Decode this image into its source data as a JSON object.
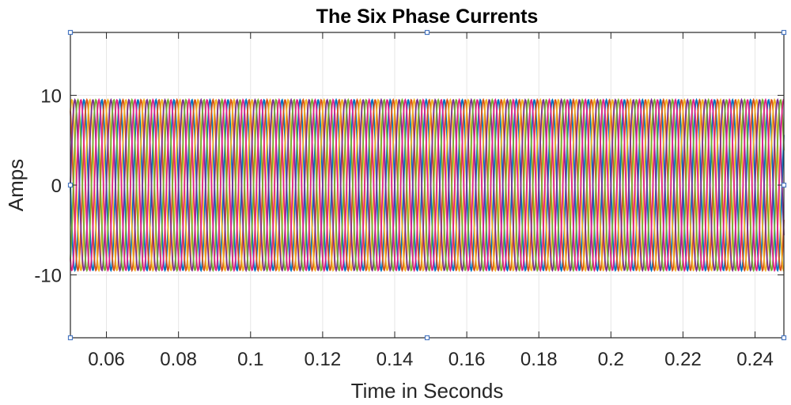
{
  "chart_data": {
    "type": "line",
    "title": "The Six Phase Currents",
    "xlabel": "Time in Seconds",
    "ylabel": "Amps",
    "xlim": [
      0.05,
      0.248
    ],
    "ylim": [
      -17,
      17
    ],
    "xticks": [
      0.06,
      0.08,
      0.1,
      0.12,
      0.14,
      0.16,
      0.18,
      0.2,
      0.22,
      0.24
    ],
    "xtick_labels": [
      "0.06",
      "0.08",
      "0.1",
      "0.12",
      "0.14",
      "0.16",
      "0.18",
      "0.2",
      "0.22",
      "0.24"
    ],
    "yticks": [
      -10,
      0,
      10
    ],
    "ytick_labels": [
      "-10",
      "0",
      "10"
    ],
    "grid": true,
    "legend": "none",
    "waveform": {
      "shape": "sinusoid",
      "amplitude": 9.5,
      "frequency_hz": 200,
      "phase_spacing_deg": 60
    },
    "series": [
      {
        "phase_deg": 180,
        "color": "#0072BD"
      },
      {
        "phase_deg": 120,
        "color": "#D95319"
      },
      {
        "phase_deg": 60,
        "color": "#EDB120"
      },
      {
        "phase_deg": 0,
        "color": "#7E2F8E"
      },
      {
        "phase_deg": -60,
        "color": "#77AC30"
      },
      {
        "phase_deg": -120,
        "color": "#E0218A"
      }
    ],
    "colors": {
      "axes": "#262626",
      "grid": "#e6e6e6",
      "handles": "#4a78c2"
    }
  }
}
